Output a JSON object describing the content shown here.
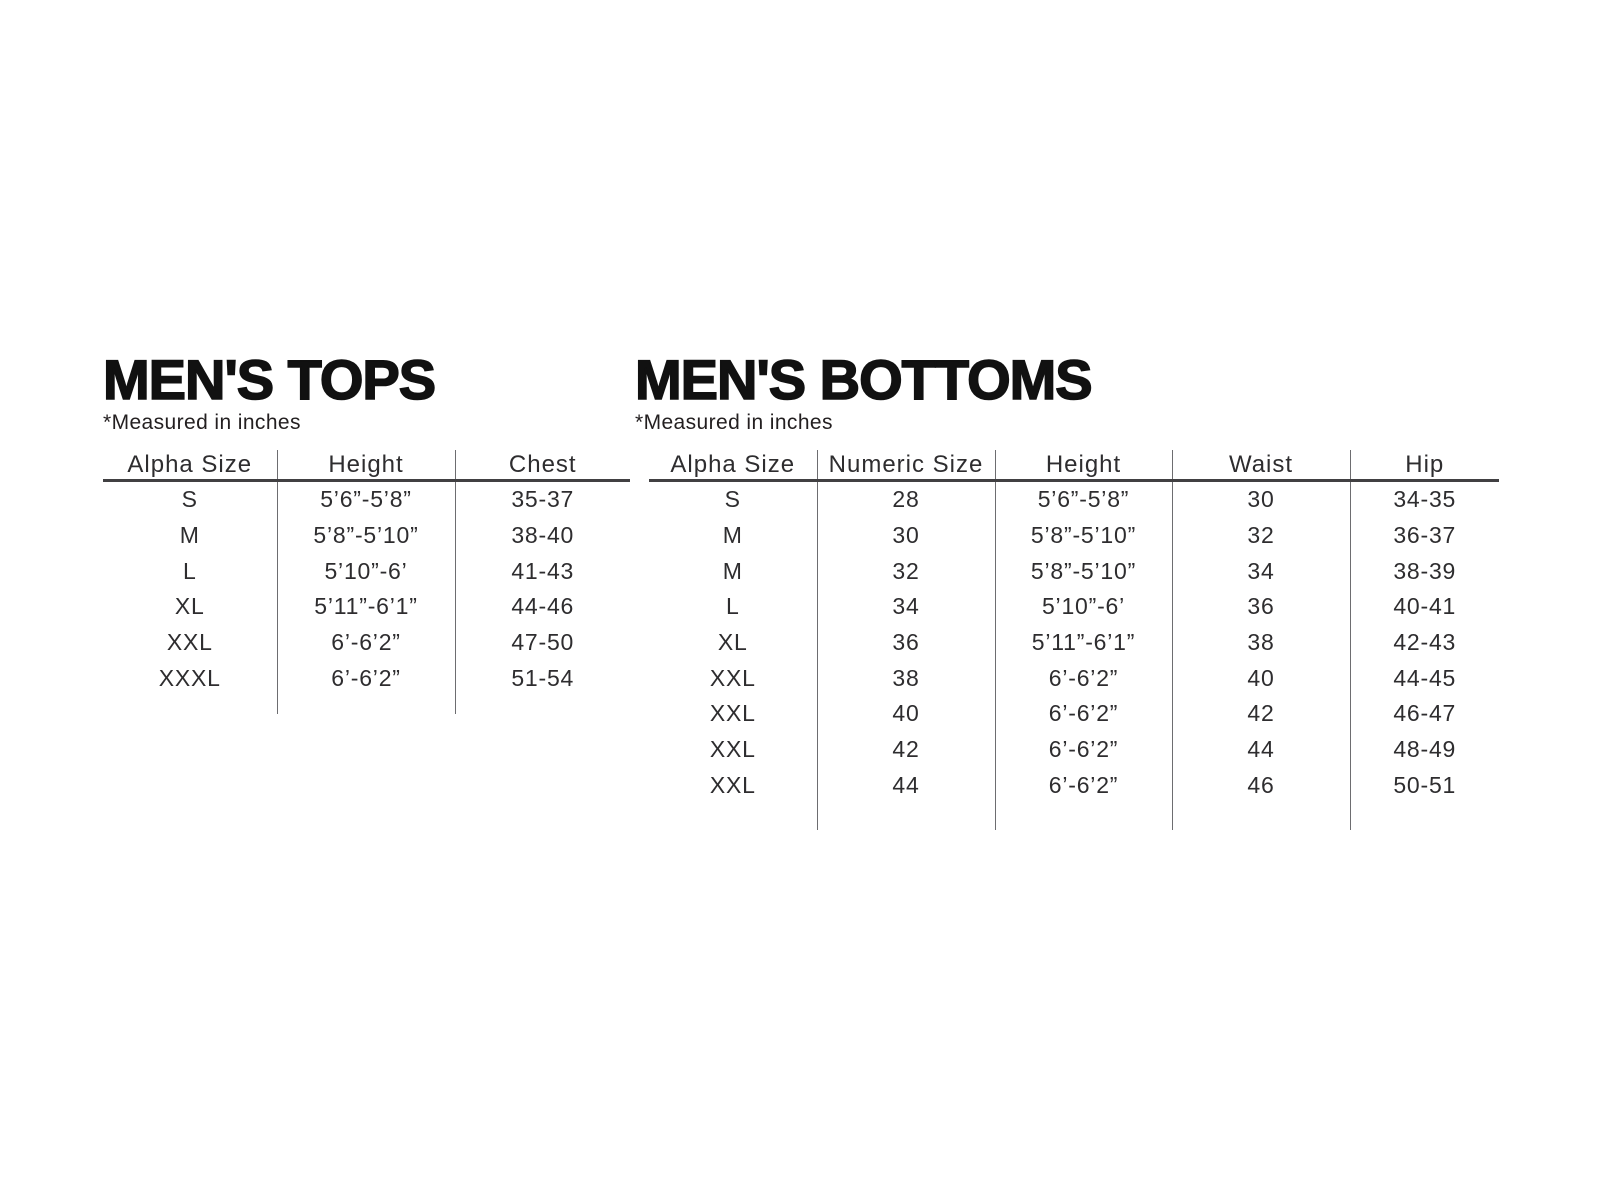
{
  "colors": {
    "background": "#ffffff",
    "title_text": "#111111",
    "body_text": "#2e2d2f",
    "header_rule": "#414042",
    "column_divider": "#6d6d70"
  },
  "sections": [
    {
      "title": "MEN'S TOPS",
      "note": "*Measured in inches",
      "columns": [
        "Alpha Size",
        "Height",
        "Chest"
      ],
      "rows": [
        [
          "S",
          "5’6”-5’8”",
          "35-37"
        ],
        [
          "M",
          "5’8”-5’10”",
          "38-40"
        ],
        [
          "L",
          "5’10”-6’",
          "41-43"
        ],
        [
          "XL",
          "5’11”-6’1”",
          "44-46"
        ],
        [
          "XXL",
          "6’-6’2”",
          "47-50"
        ],
        [
          "XXXL",
          "6’-6’2”",
          "51-54"
        ]
      ]
    },
    {
      "title": "MEN'S BOTTOMS",
      "note": "*Measured in inches",
      "columns": [
        "Alpha Size",
        "Numeric Size",
        "Height",
        "Waist",
        "Hip"
      ],
      "rows": [
        [
          "S",
          "28",
          "5’6”-5’8”",
          "30",
          "34-35"
        ],
        [
          "M",
          "30",
          "5’8”-5’10”",
          "32",
          "36-37"
        ],
        [
          "M",
          "32",
          "5’8”-5’10”",
          "34",
          "38-39"
        ],
        [
          "L",
          "34",
          "5’10”-6’",
          "36",
          "40-41"
        ],
        [
          "XL",
          "36",
          "5’11”-6’1”",
          "38",
          "42-43"
        ],
        [
          "XXL",
          "38",
          "6’-6’2”",
          "40",
          "44-45"
        ],
        [
          "XXL",
          "40",
          "6’-6’2”",
          "42",
          "46-47"
        ],
        [
          "XXL",
          "42",
          "6’-6’2”",
          "44",
          "48-49"
        ],
        [
          "XXL",
          "44",
          "6’-6’2”",
          "46",
          "50-51"
        ]
      ]
    }
  ]
}
